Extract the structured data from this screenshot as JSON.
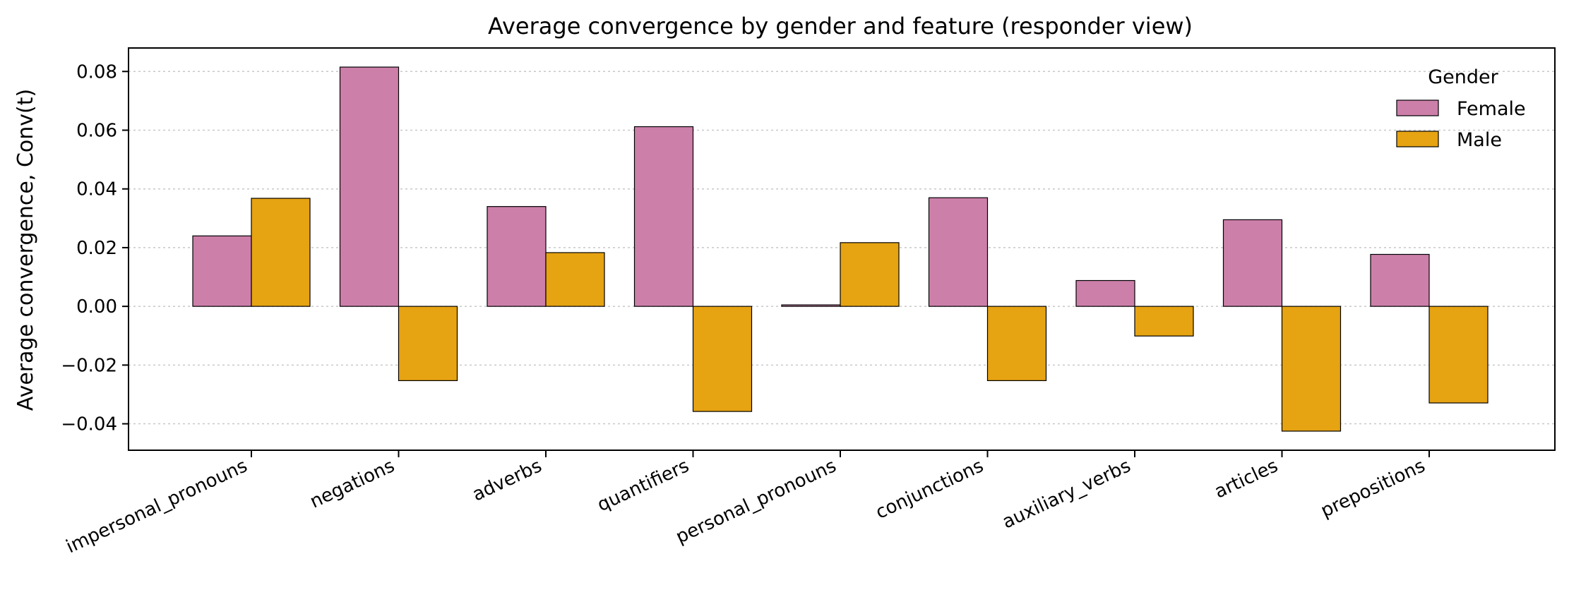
{
  "chart_data": {
    "type": "bar",
    "title": "Average convergence by gender and feature (responder view)",
    "xlabel": "",
    "ylabel": "Average convergence, Conv(t)",
    "categories": [
      "impersonal_pronouns",
      "negations",
      "adverbs",
      "quantifiers",
      "personal_pronouns",
      "conjunctions",
      "auxiliary_verbs",
      "articles",
      "prepositions"
    ],
    "series": [
      {
        "name": "Female",
        "color": "#cc7fa9",
        "values": [
          0.024,
          0.0815,
          0.034,
          0.0612,
          0.0005,
          0.037,
          0.0088,
          0.0295,
          0.0177
        ]
      },
      {
        "name": "Male",
        "color": "#e6a312",
        "values": [
          0.0368,
          -0.0253,
          0.0183,
          -0.0358,
          0.0217,
          -0.0253,
          -0.0101,
          -0.0425,
          -0.0329
        ]
      }
    ],
    "ylim": [
      -0.049,
      0.088
    ],
    "yticks": [
      -0.04,
      -0.02,
      0.0,
      0.02,
      0.04,
      0.06,
      0.08
    ],
    "ytick_labels": [
      "−0.04",
      "−0.02",
      "0.00",
      "0.02",
      "0.04",
      "0.06",
      "0.08"
    ],
    "grid": "horizontal dotted",
    "legend": {
      "title": "Gender",
      "placement": "top-right"
    }
  }
}
